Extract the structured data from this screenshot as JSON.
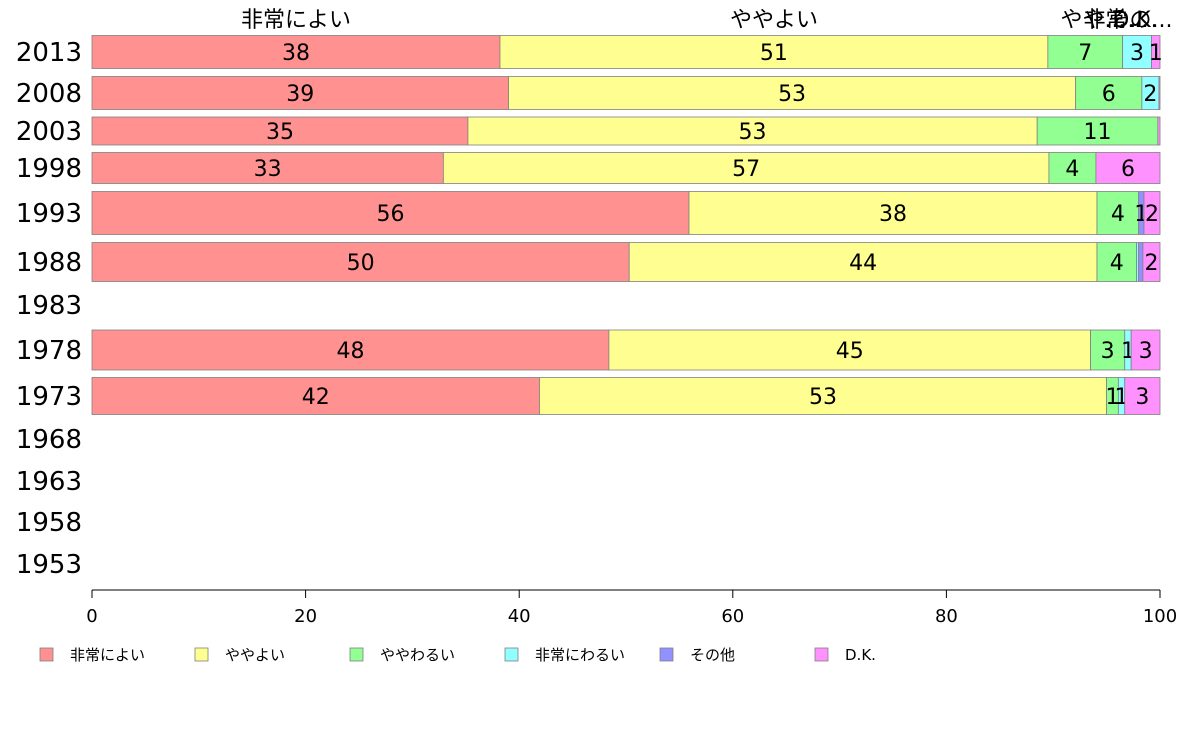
{
  "chart_data": {
    "type": "bar",
    "orientation": "horizontal",
    "stacked": true,
    "series": [
      {
        "name": "非常によい",
        "color": "#ff9191"
      },
      {
        "name": "ややよい",
        "color": "#ffff91"
      },
      {
        "name": "ややわるい",
        "color": "#91ff91"
      },
      {
        "name": "非常にわるい",
        "color": "#91ffff"
      },
      {
        "name": "その他",
        "color": "#9191ff"
      },
      {
        "name": "D.K.",
        "color": "#ff91ff"
      }
    ],
    "categories": [
      "2013",
      "2008",
      "2003",
      "1998",
      "1993",
      "1988",
      "1983",
      "1978",
      "1973",
      "1968",
      "1963",
      "1958",
      "1953"
    ],
    "values": [
      [
        38.2,
        51.3,
        7.0,
        2.7,
        0.0,
        0.8
      ],
      [
        39.0,
        53.1,
        6.2,
        1.6,
        0.0,
        0.1
      ],
      [
        35.2,
        53.3,
        11.3,
        0.0,
        0.0,
        0.2
      ],
      [
        32.9,
        56.7,
        4.4,
        0.0,
        0.0,
        6.0
      ],
      [
        55.9,
        38.2,
        3.9,
        0.0,
        0.5,
        1.5
      ],
      [
        50.3,
        43.8,
        3.7,
        0.2,
        0.4,
        1.6
      ],
      null,
      [
        48.4,
        45.1,
        3.2,
        0.6,
        0.0,
        2.7
      ],
      [
        41.9,
        53.1,
        1.1,
        0.6,
        0.0,
        3.3
      ],
      null,
      null,
      null,
      null
    ],
    "top_labels": [
      "非常によい",
      "ややよい",
      "やや...",
      "非常...",
      "その...",
      "D.K."
    ],
    "xlim": [
      0,
      100
    ],
    "xticks": [
      0,
      20,
      40,
      60,
      80,
      100
    ],
    "legend_position": "bottom",
    "grid": false
  }
}
